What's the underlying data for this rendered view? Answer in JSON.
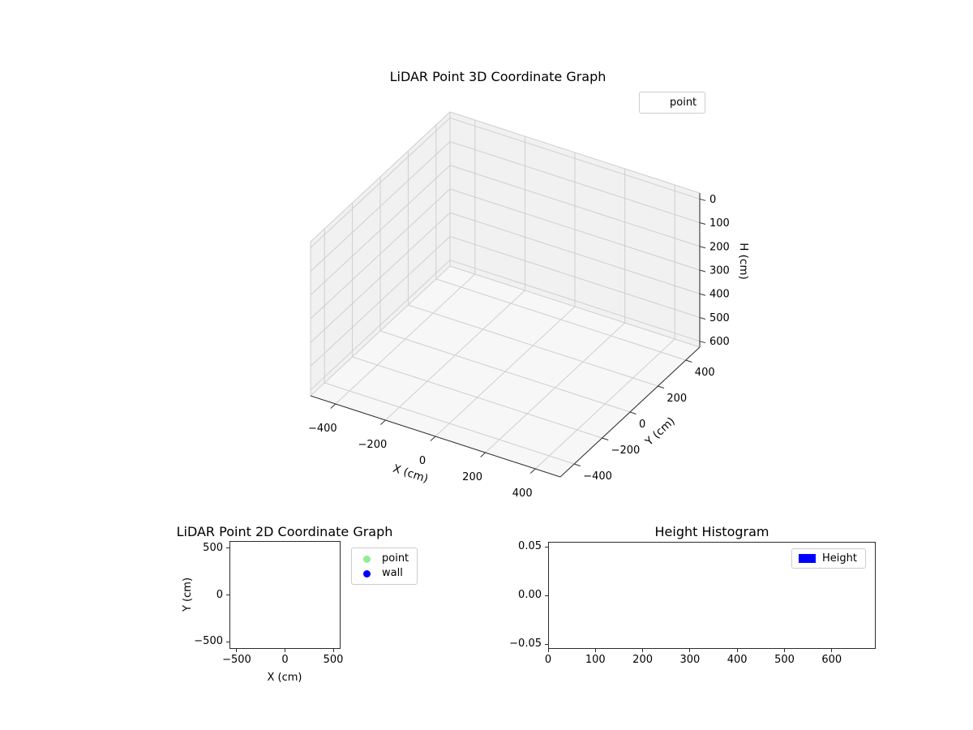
{
  "colors": {
    "background": "#ffffff",
    "pane_wall": "#f1f1f1",
    "pane_floor": "#f7f7f7",
    "grid": "#cfcfcf",
    "axis_edge": "#333333",
    "legend_border": "#cccccc",
    "point_marker": "#90ee90",
    "wall_marker": "#0000ff",
    "height_bar": "#0000ff",
    "text": "#000000"
  },
  "chart_data": [
    {
      "id": "lidar-3d",
      "type": "scatter3d",
      "title": "LiDAR Point 3D Coordinate Graph",
      "xlabel": "X (cm)",
      "ylabel": "Y (cm)",
      "zlabel": "H (cm)",
      "xlim": [
        -500,
        500
      ],
      "ylim": [
        -500,
        500
      ],
      "zlim": [
        0,
        600
      ],
      "zaxis_inverted": true,
      "grid": true,
      "xticks": [
        -400,
        -200,
        0,
        200,
        400
      ],
      "xticklabels": [
        "−400",
        "−200",
        "0",
        "200",
        "400"
      ],
      "yticks": [
        -400,
        -200,
        0,
        200,
        400
      ],
      "yticklabels": [
        "−400",
        "−200",
        "0",
        "200",
        "400"
      ],
      "zticks": [
        0,
        100,
        200,
        300,
        400,
        500,
        600
      ],
      "zticklabels": [
        "0",
        "100",
        "200",
        "300",
        "400",
        "500",
        "600"
      ],
      "legend": [
        {
          "label": "point",
          "marker": "none-visible",
          "color": null
        }
      ],
      "points": []
    },
    {
      "id": "lidar-2d",
      "type": "scatter",
      "title": "LiDAR Point 2D Coordinate Graph",
      "xlabel": "X (cm)",
      "ylabel": "Y (cm)",
      "xlim": [
        -575,
        575
      ],
      "ylim": [
        -575,
        575
      ],
      "grid": false,
      "xticks": [
        -500,
        0,
        500
      ],
      "xticklabels": [
        "−500",
        "0",
        "500"
      ],
      "yticks": [
        -500,
        0,
        500
      ],
      "yticklabels": [
        "−500",
        "0",
        "500"
      ],
      "legend": [
        {
          "label": "point",
          "marker": "circle",
          "color": "#90ee90"
        },
        {
          "label": "wall",
          "marker": "circle",
          "color": "#0000ff"
        }
      ],
      "points": []
    },
    {
      "id": "height-histogram",
      "type": "bar",
      "title": "Height Histogram",
      "xlabel": "",
      "ylabel": "",
      "xlim": [
        0,
        693
      ],
      "ylim": [
        -0.055,
        0.055
      ],
      "grid": false,
      "xticks": [
        0,
        100,
        200,
        300,
        400,
        500,
        600
      ],
      "xticklabels": [
        "0",
        "100",
        "200",
        "300",
        "400",
        "500",
        "600"
      ],
      "yticks": [
        -0.05,
        0,
        0.05
      ],
      "yticklabels": [
        "−0.05",
        "0.00",
        "0.05"
      ],
      "legend": [
        {
          "label": "Height",
          "marker": "rect",
          "color": "#0000ff"
        }
      ],
      "values": []
    }
  ]
}
